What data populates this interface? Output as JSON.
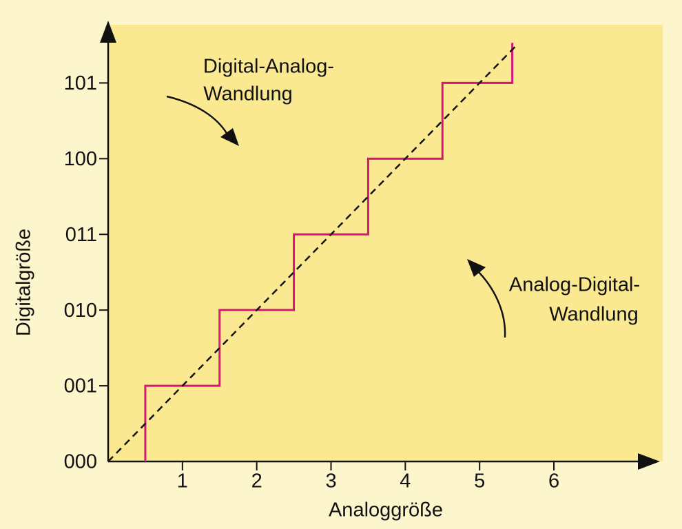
{
  "chart_data": {
    "type": "line",
    "x_label": "Analoggröße",
    "y_label": "Digitalgröße",
    "xlim": [
      0,
      7.4
    ],
    "ylim": [
      0,
      5.75
    ],
    "xticks": [
      1,
      2,
      3,
      4,
      5,
      6
    ],
    "yticks": [
      {
        "value": 0,
        "label": "000"
      },
      {
        "value": 1,
        "label": "001"
      },
      {
        "value": 2,
        "label": "010"
      },
      {
        "value": 3,
        "label": "011"
      },
      {
        "value": 4,
        "label": "100"
      },
      {
        "value": 5,
        "label": "101"
      }
    ],
    "grid": false,
    "series": [
      {
        "color": "#d6157a",
        "dashed": false,
        "x": [
          0.5,
          0.5,
          1.5,
          1.5,
          2.5,
          2.5,
          3.5,
          3.5,
          4.5,
          4.5,
          5.44,
          5.44
        ],
        "values": [
          0,
          1,
          1,
          2,
          2,
          3,
          3,
          4,
          4,
          5,
          5,
          5.53
        ]
      },
      {
        "color": "#111111",
        "dashed": true,
        "x": [
          0,
          5.5
        ],
        "values": [
          0,
          5.5
        ]
      }
    ],
    "annotations": [
      {
        "lines": [
          "Digital-Analog-",
          "Wandlung"
        ]
      },
      {
        "lines": [
          "Analog-Digital-",
          "Wandlung"
        ]
      }
    ]
  }
}
